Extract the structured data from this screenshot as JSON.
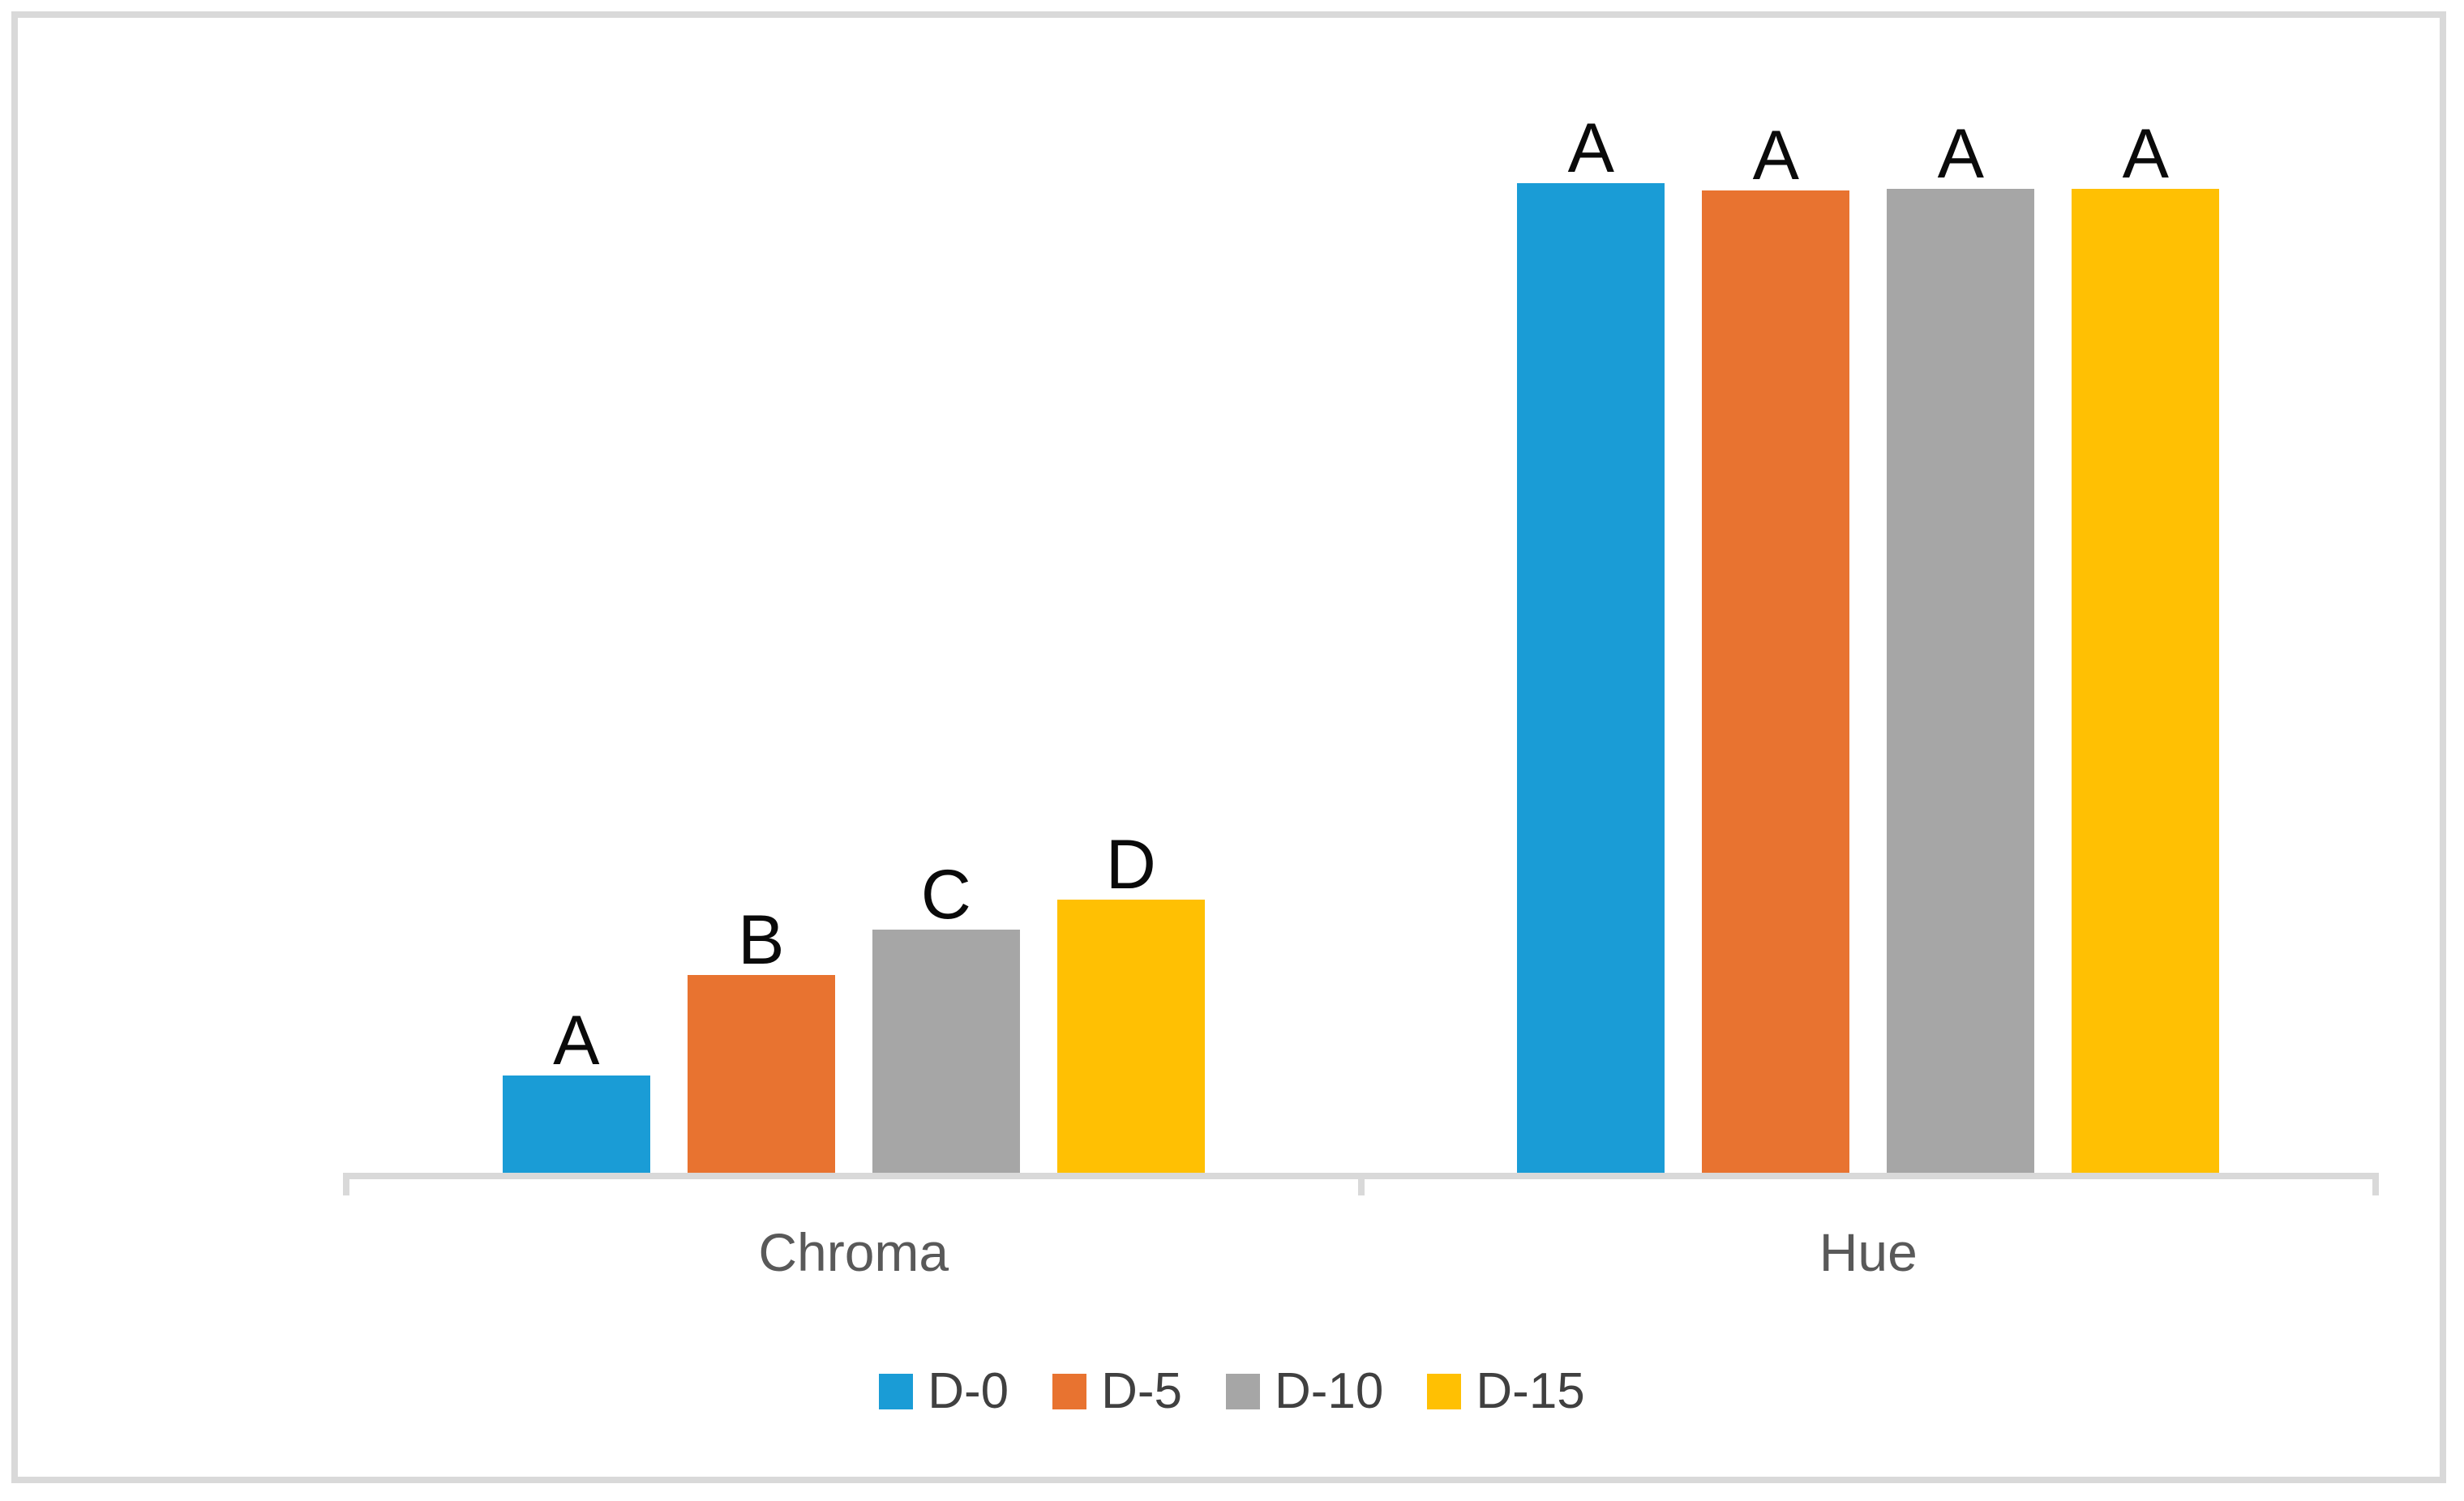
{
  "chart_data": {
    "type": "bar",
    "title": "",
    "categories": [
      "Chroma",
      "Hue"
    ],
    "series": [
      {
        "name": "D-0",
        "color": "#1A9CD6",
        "values": [
          9.8,
          100.0
        ]
      },
      {
        "name": "D-5",
        "color": "#E87330",
        "values": [
          20.0,
          99.3
        ]
      },
      {
        "name": "D-10",
        "color": "#A6A6A6",
        "values": [
          24.6,
          99.4
        ]
      },
      {
        "name": "D-15",
        "color": "#FFC003",
        "values": [
          27.6,
          99.4
        ]
      }
    ],
    "bar_labels": [
      [
        "A",
        "B",
        "C",
        "D"
      ],
      [
        "A",
        "A",
        "A",
        "A"
      ]
    ],
    "xlabel": "",
    "ylabel": "",
    "ylim": [
      0,
      117
    ],
    "y_axis_visible": false,
    "gridlines": false,
    "legend": {
      "position": "bottom",
      "entries": [
        "D-0",
        "D-5",
        "D-10",
        "D-15"
      ]
    },
    "colors": {
      "axis_line": "#D9D9D9",
      "frame_border": "#D9D9D9",
      "category_label_text": "#595959",
      "legend_text": "#404040",
      "bar_label_text": "#0a0a0a",
      "background": "#ffffff"
    }
  }
}
